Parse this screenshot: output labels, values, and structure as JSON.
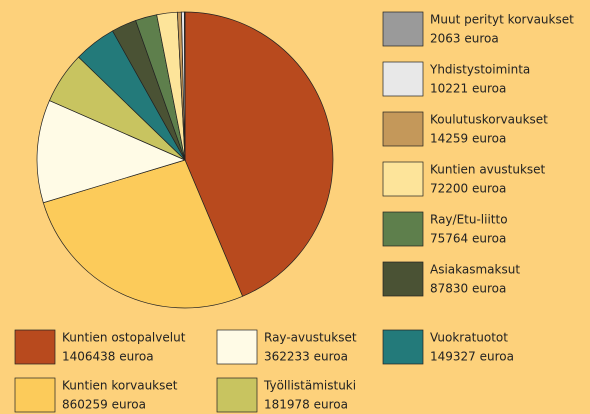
{
  "chart_data": {
    "type": "pie",
    "categories": [
      "Kuntien ostopalvelut",
      "Kuntien korvaukset",
      "Ray-avustukset",
      "Työllistämistuki",
      "Vuokratuotot",
      "Asiakasmaksut",
      "Ray/Etu-liitto",
      "Kuntien avustukset",
      "Koulutuskorvaukset",
      "Yhdistystoiminta",
      "Muut perityt korvaukset"
    ],
    "values": [
      1406438,
      860259,
      362233,
      181978,
      149327,
      87830,
      75764,
      72200,
      14259,
      10221,
      2063
    ],
    "value_labels": [
      "1406438 euroa",
      "860259 euroa",
      "362233 euroa",
      "181978 euroa",
      "149327 euroa",
      "87830 euroa",
      "75764 euroa",
      "72200 euroa",
      "14259 euroa",
      "10221 euroa",
      "2063 euroa"
    ],
    "colors": [
      "#b84a1e",
      "#fccb5a",
      "#fffbe6",
      "#c8c460",
      "#237a7a",
      "#4a5234",
      "#5e7f4c",
      "#fde49a",
      "#c4985a",
      "#e8e8e8",
      "#9a9a9a"
    ]
  }
}
